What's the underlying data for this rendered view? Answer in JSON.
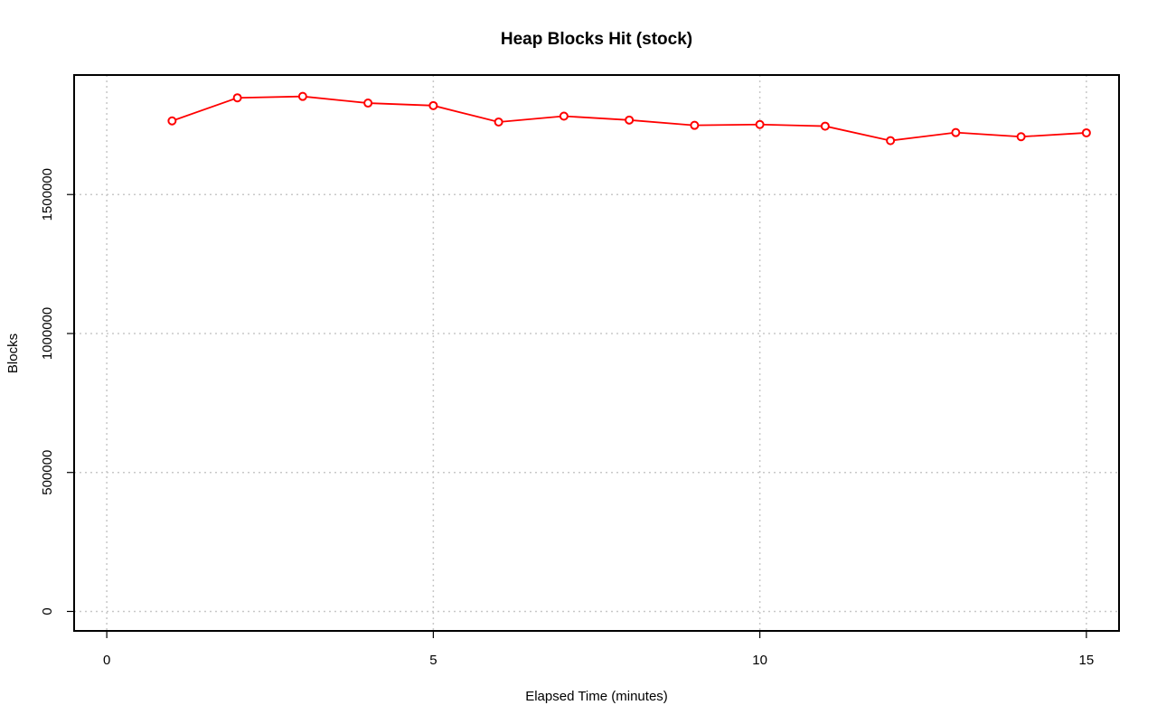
{
  "chart_data": {
    "type": "line",
    "title": "Heap Blocks Hit (stock)",
    "xlabel": "Elapsed Time (minutes)",
    "ylabel": "Blocks",
    "xlim": [
      -0.5,
      15.5
    ],
    "ylim": [
      -70000,
      1930000
    ],
    "xticks": [
      0,
      5,
      10,
      15
    ],
    "yticks": [
      0,
      500000,
      1000000,
      1500000
    ],
    "grid": true,
    "color": "#ff0000",
    "marker": "open-circle",
    "series": [
      {
        "x": [
          1,
          2,
          3,
          4,
          5,
          6,
          7,
          8,
          9,
          10,
          11,
          12,
          13,
          14,
          15
        ],
        "values": [
          1765000,
          1848000,
          1853000,
          1829000,
          1820000,
          1761000,
          1782000,
          1768000,
          1749000,
          1752000,
          1746000,
          1694000,
          1723000,
          1708000,
          1722000
        ]
      }
    ]
  }
}
